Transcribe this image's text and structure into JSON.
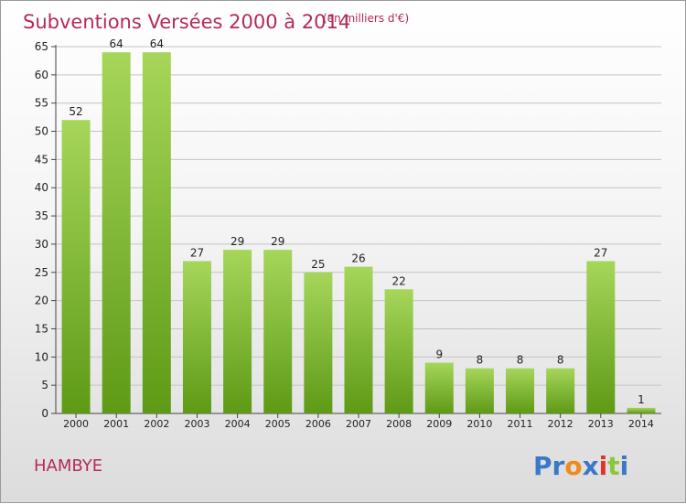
{
  "header": {
    "title": "Subventions Versées 2000 à 2014",
    "unit": "(en milliers d'€)"
  },
  "commune": "HAMBYE",
  "logo": {
    "text": "Proxiti",
    "letters": [
      {
        "ch": "P",
        "color": "#3a78c8"
      },
      {
        "ch": "r",
        "color": "#3a78c8"
      },
      {
        "ch": "o",
        "color": "#f08a1c"
      },
      {
        "ch": "x",
        "color": "#3a78c8"
      },
      {
        "ch": "i",
        "color": "#e2332a"
      },
      {
        "ch": "t",
        "color": "#8cc63f"
      },
      {
        "ch": "i",
        "color": "#3a78c8"
      }
    ]
  },
  "colors": {
    "bar_light": "#a6d65a",
    "bar_dark": "#5e9a16",
    "title": "#b42a5a",
    "grid": "#c4c4c4"
  },
  "chart_data": {
    "type": "bar",
    "title": "Subventions Versées 2000 à 2014",
    "subtitle": "(en milliers d'€)",
    "xlabel": "",
    "ylabel": "",
    "categories": [
      "2000",
      "2001",
      "2002",
      "2003",
      "2004",
      "2005",
      "2006",
      "2007",
      "2008",
      "2009",
      "2010",
      "2011",
      "2012",
      "2013",
      "2014"
    ],
    "values": [
      52,
      64,
      64,
      27,
      29,
      29,
      25,
      26,
      22,
      9,
      8,
      8,
      8,
      27,
      1
    ],
    "ylim": [
      0,
      65
    ],
    "yticks": [
      0,
      5,
      10,
      15,
      20,
      25,
      30,
      35,
      40,
      45,
      50,
      55,
      60,
      65
    ],
    "grid": true,
    "data_labels": true
  }
}
